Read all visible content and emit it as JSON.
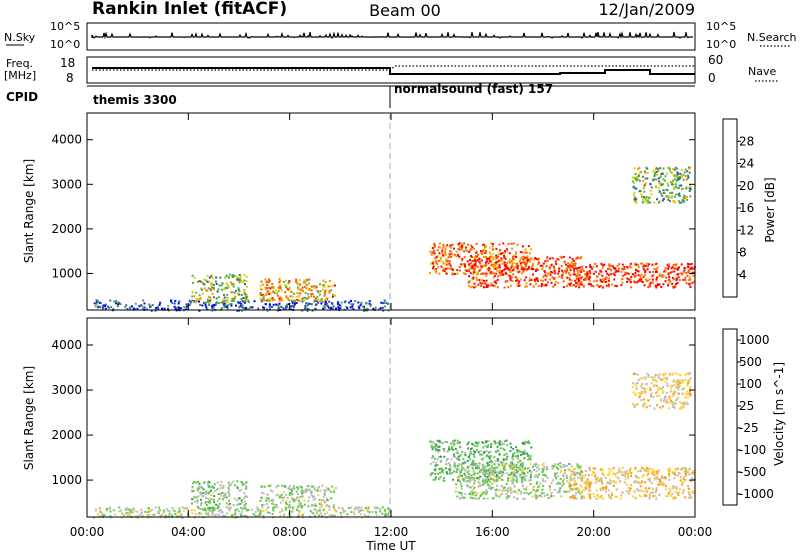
{
  "header": {
    "station": "Rankin Inlet (fitACF)",
    "beam": "Beam 00",
    "date": "12/Jan/2009"
  },
  "panels": {
    "nsky": {
      "label": "N.Sky",
      "ticks": [
        "10^5",
        "10^0"
      ],
      "right_ticks": [
        "10^5",
        "10^0"
      ],
      "right_label": "N.Search"
    },
    "freq": {
      "label_line1": "Freq.",
      "label_line2": "[MHz]",
      "ticks": [
        "18",
        "8"
      ],
      "right_ticks": [
        "60",
        "0"
      ],
      "right_label": "Nave"
    },
    "cpid": {
      "label": "CPID",
      "modes": [
        "themis 3300",
        "normalsound (fast) 157"
      ]
    }
  },
  "colors": {
    "power_scale": [
      "#0000ff",
      "#2a52b8",
      "#3d8a5e",
      "#54b04a",
      "#d6d400",
      "#ff9000",
      "#ff5a00",
      "#ff0000"
    ],
    "velocity_scale": [
      "#2040c0",
      "#2f7a8a",
      "#3a9a5a",
      "#60c848",
      "#bcbcbc",
      "#ffd040",
      "#ff9a10",
      "#ff6000",
      "#ff0000"
    ],
    "marker_line": "#aaaaaa"
  },
  "chart_data": [
    {
      "type": "heatmap",
      "name": "power",
      "xlabel": "",
      "ylabel": "Slant Range [km]",
      "x_ticks": [
        "00:00",
        "04:00",
        "08:00",
        "12:00",
        "16:00",
        "20:00",
        "00:00"
      ],
      "xlim_hours": [
        0,
        24
      ],
      "ylim_km": [
        180,
        4600
      ],
      "y_ticks": [
        1000,
        2000,
        3000,
        4000
      ],
      "colorbar": {
        "label": "Power [dB]",
        "ticks": [
          "28",
          "24",
          "20",
          "16",
          "12",
          "8",
          "4"
        ],
        "range": [
          0,
          30
        ]
      },
      "echo_regions": [
        {
          "t_start": 0.2,
          "t_end": 12.0,
          "r_min": 180,
          "r_max": 420,
          "value": 6
        },
        {
          "t_start": 4.1,
          "t_end": 6.3,
          "r_min": 350,
          "r_max": 1000,
          "value": 14
        },
        {
          "t_start": 6.8,
          "t_end": 9.8,
          "r_min": 400,
          "r_max": 900,
          "value": 20
        },
        {
          "t_start": 13.5,
          "t_end": 17.5,
          "r_min": 1000,
          "r_max": 1700,
          "value": 24
        },
        {
          "t_start": 15.0,
          "t_end": 19.5,
          "r_min": 700,
          "r_max": 1400,
          "value": 26
        },
        {
          "t_start": 19.0,
          "t_end": 24.0,
          "r_min": 700,
          "r_max": 1250,
          "value": 27
        },
        {
          "t_start": 21.5,
          "t_end": 23.8,
          "r_min": 2600,
          "r_max": 3400,
          "value": 13
        }
      ]
    },
    {
      "type": "heatmap",
      "name": "velocity",
      "xlabel": "Time UT",
      "ylabel": "Slant Range [km]",
      "x_ticks": [
        "00:00",
        "04:00",
        "08:00",
        "12:00",
        "16:00",
        "20:00",
        "00:00"
      ],
      "xlim_hours": [
        0,
        24
      ],
      "ylim_km": [
        180,
        4600
      ],
      "y_ticks": [
        1000,
        2000,
        3000,
        4000
      ],
      "colorbar": {
        "label": "Velocity [m s^-1]",
        "ticks": [
          "1000",
          "500",
          "100",
          "25",
          "-25",
          "-100",
          "-500",
          "-1000"
        ],
        "range": [
          -1000,
          1000
        ]
      },
      "echo_regions": [
        {
          "t_start": 0.2,
          "t_end": 12.0,
          "r_min": 180,
          "r_max": 420,
          "value": 40
        },
        {
          "t_start": 4.1,
          "t_end": 6.3,
          "r_min": 350,
          "r_max": 1000,
          "value": 120
        },
        {
          "t_start": 6.8,
          "t_end": 9.8,
          "r_min": 400,
          "r_max": 900,
          "value": 90
        },
        {
          "t_start": 13.5,
          "t_end": 17.5,
          "r_min": 1000,
          "r_max": 1900,
          "value": 250
        },
        {
          "t_start": 14.5,
          "t_end": 19.5,
          "r_min": 600,
          "r_max": 1400,
          "value": 80
        },
        {
          "t_start": 19.0,
          "t_end": 24.0,
          "r_min": 600,
          "r_max": 1300,
          "value": -200
        },
        {
          "t_start": 21.5,
          "t_end": 23.8,
          "r_min": 2600,
          "r_max": 3400,
          "value": -150
        }
      ]
    }
  ]
}
